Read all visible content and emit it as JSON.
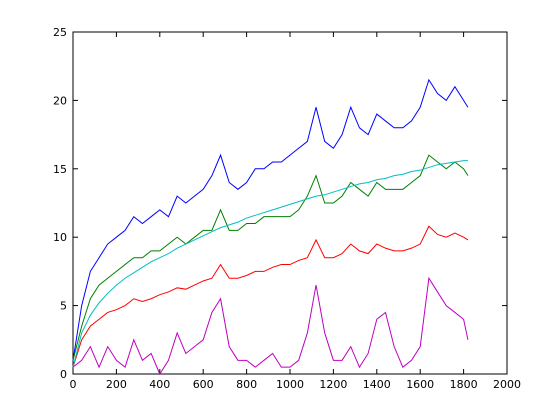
{
  "chart_data": {
    "type": "line",
    "x": [
      0,
      40,
      80,
      120,
      160,
      200,
      240,
      280,
      320,
      360,
      400,
      440,
      480,
      520,
      560,
      600,
      640,
      680,
      720,
      760,
      800,
      840,
      880,
      920,
      960,
      1000,
      1040,
      1080,
      1120,
      1160,
      1200,
      1240,
      1280,
      1320,
      1360,
      1400,
      1440,
      1480,
      1520,
      1560,
      1600,
      1640,
      1680,
      1720,
      1760,
      1800,
      1820
    ],
    "series": [
      {
        "color": "#0000ff",
        "values": [
          1,
          5,
          7.5,
          8.5,
          9.5,
          10,
          10.5,
          11.5,
          11,
          11.5,
          12,
          11.5,
          13,
          12.5,
          13,
          13.5,
          14.5,
          16,
          14,
          13.5,
          14,
          15,
          15,
          15.5,
          15.5,
          16,
          16.5,
          17,
          19.5,
          17,
          16.5,
          17.5,
          19.5,
          18,
          17.5,
          19,
          18.5,
          18,
          18,
          18.5,
          19.5,
          21.5,
          20.5,
          20,
          21,
          20,
          19.5
        ]
      },
      {
        "color": "#008000",
        "values": [
          1,
          3.5,
          5.5,
          6.5,
          7,
          7.5,
          8,
          8.5,
          8.5,
          9,
          9,
          9.5,
          10,
          9.5,
          10,
          10.5,
          10.5,
          12,
          10.5,
          10.5,
          11,
          11,
          11.5,
          11.5,
          11.5,
          11.5,
          12,
          13,
          14.5,
          12.5,
          12.5,
          13,
          14,
          13.5,
          13,
          14,
          13.5,
          13.5,
          13.5,
          14,
          14.5,
          16,
          15.5,
          15,
          15.5,
          15,
          14.5
        ]
      },
      {
        "color": "#ff0000",
        "values": [
          0.5,
          2.5,
          3.5,
          4,
          4.5,
          4.7,
          5,
          5.5,
          5.3,
          5.5,
          5.8,
          6,
          6.3,
          6.2,
          6.5,
          6.8,
          7,
          8,
          7,
          7,
          7.2,
          7.5,
          7.5,
          7.8,
          8,
          8,
          8.3,
          8.5,
          9.8,
          8.5,
          8.5,
          8.8,
          9.5,
          9,
          8.8,
          9.5,
          9.2,
          9,
          9,
          9.2,
          9.5,
          10.8,
          10.2,
          10,
          10.3,
          10,
          9.8
        ]
      },
      {
        "color": "#00bfbf",
        "values": [
          0.5,
          3,
          4.3,
          5.2,
          5.9,
          6.5,
          7,
          7.4,
          7.8,
          8.2,
          8.5,
          8.8,
          9.2,
          9.5,
          9.8,
          10.1,
          10.4,
          10.7,
          10.9,
          11.1,
          11.4,
          11.6,
          11.8,
          12,
          12.2,
          12.4,
          12.6,
          12.8,
          13,
          13.1,
          13.3,
          13.5,
          13.7,
          13.9,
          14,
          14.2,
          14.3,
          14.5,
          14.6,
          14.8,
          14.9,
          15.1,
          15.3,
          15.4,
          15.5,
          15.6,
          15.6
        ]
      },
      {
        "color": "#bf00bf",
        "values": [
          0.5,
          1,
          2,
          0.5,
          2,
          1,
          0.5,
          2.5,
          1,
          1.5,
          0,
          1,
          3,
          1.5,
          2,
          2.5,
          4.5,
          5.5,
          2,
          1,
          1,
          0.5,
          1,
          1.5,
          0.5,
          0.5,
          1,
          3,
          6.5,
          3,
          1,
          1,
          2,
          0.5,
          1.5,
          4,
          4.5,
          2,
          0.5,
          1,
          2,
          7,
          6,
          5,
          4.5,
          4,
          2.5
        ]
      }
    ],
    "xlim": [
      0,
      2000
    ],
    "xticks": [
      0,
      200,
      400,
      600,
      800,
      1000,
      1200,
      1400,
      1600,
      1800,
      2000
    ],
    "ylim": [
      0,
      25
    ],
    "yticks": [
      0,
      5,
      10,
      15,
      20,
      25
    ]
  }
}
